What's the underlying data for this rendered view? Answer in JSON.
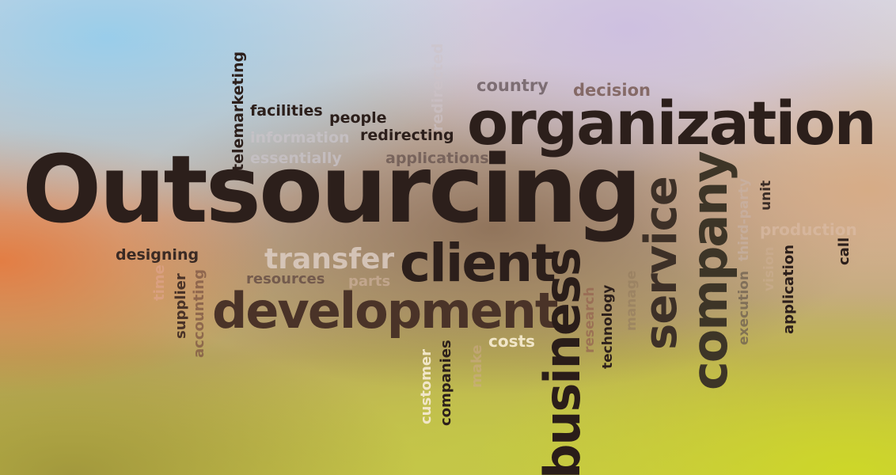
{
  "word_cloud": {
    "main": "Outsourcing",
    "organization": "organization",
    "development": "development",
    "client": "client",
    "transfer": "transfer",
    "business": "business",
    "service": "service",
    "company": "company",
    "country": "country",
    "decision": "decision",
    "facilities": "facilities",
    "people": "people",
    "information": "information",
    "redirecting": "redirecting",
    "essentially": "essentially",
    "applications": "applications",
    "telemarketing": "telemarketing",
    "redirected": "redirected",
    "designing": "designing",
    "resources": "resources",
    "parts": "parts",
    "time": "time",
    "supplier": "supplier",
    "accounting": "accounting",
    "costs": "costs",
    "customer": "customer",
    "companies": "companies",
    "make": "make",
    "research": "research",
    "technology": "technology",
    "manage": "manage",
    "execution": "execution",
    "third_party": "third-party",
    "unit": "unit",
    "production": "production",
    "application": "application",
    "call": "call",
    "vision": "vision"
  }
}
